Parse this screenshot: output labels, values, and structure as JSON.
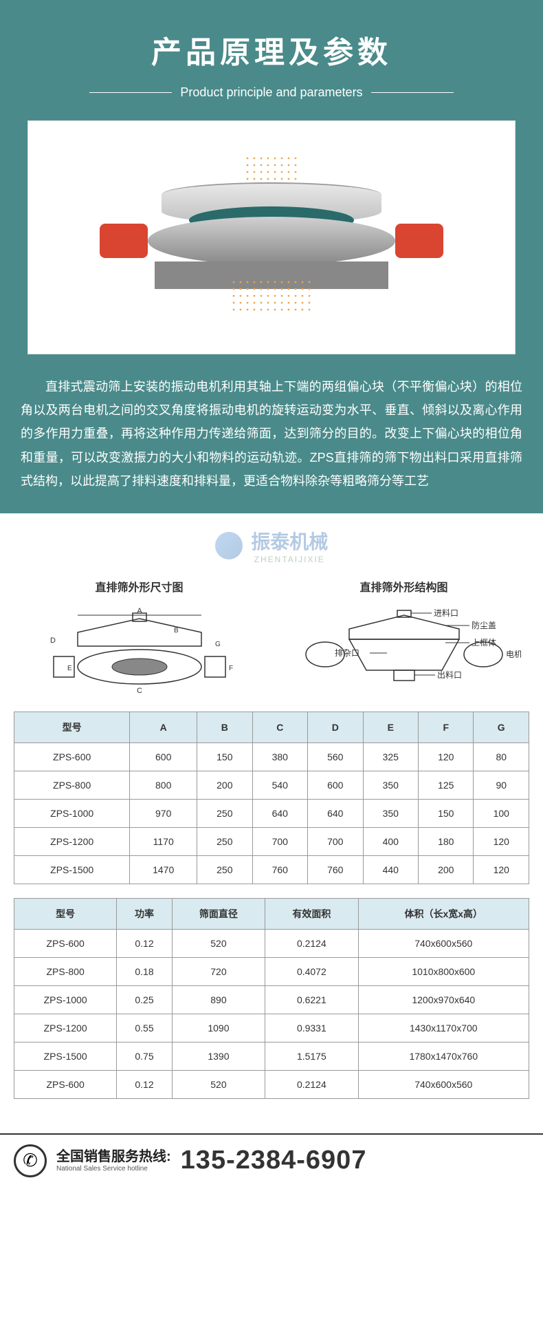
{
  "hero": {
    "title": "产品原理及参数",
    "subtitle": "Product principle and parameters",
    "description": "直排式震动筛上安装的振动电机利用其轴上下端的两组偏心块（不平衡偏心块）的相位角以及两台电机之间的交叉角度将振动电机的旋转运动变为水平、垂直、倾斜以及离心作用的多作用力重叠，再将这种作用力传递给筛面，达到筛分的目的。改变上下偏心块的相位角和重量，可以改变激振力的大小和物料的运动轨迹。ZPS直排筛的筛下物出料口采用直排筛式结构，以此提高了排料速度和排料量，更适合物料除杂等粗略筛分等工艺"
  },
  "watermark": {
    "cn": "振泰机械",
    "en": "ZHENTAIJIXIE"
  },
  "diagrams": {
    "left_title": "直排筛外形尺寸图",
    "right_title": "直排筛外形结构图",
    "labels": {
      "inlet": "进料口",
      "dust_cover": "防尘盖",
      "upper_frame": "上框体",
      "discharge": "排杂口",
      "outlet": "出料口",
      "motor": "电机"
    }
  },
  "table1": {
    "headers": [
      "型号",
      "A",
      "B",
      "C",
      "D",
      "E",
      "F",
      "G"
    ],
    "rows": [
      [
        "ZPS-600",
        "600",
        "150",
        "380",
        "560",
        "325",
        "120",
        "80"
      ],
      [
        "ZPS-800",
        "800",
        "200",
        "540",
        "600",
        "350",
        "125",
        "90"
      ],
      [
        "ZPS-1000",
        "970",
        "250",
        "640",
        "640",
        "350",
        "150",
        "100"
      ],
      [
        "ZPS-1200",
        "1170",
        "250",
        "700",
        "700",
        "400",
        "180",
        "120"
      ],
      [
        "ZPS-1500",
        "1470",
        "250",
        "760",
        "760",
        "440",
        "200",
        "120"
      ]
    ]
  },
  "table2": {
    "headers": [
      "型号",
      "功率",
      "筛面直径",
      "有效面积",
      "体积（长x宽x高）"
    ],
    "rows": [
      [
        "ZPS-600",
        "0.12",
        "520",
        "0.2124",
        "740x600x560"
      ],
      [
        "ZPS-800",
        "0.18",
        "720",
        "0.4072",
        "1010x800x600"
      ],
      [
        "ZPS-1000",
        "0.25",
        "890",
        "0.6221",
        "1200x970x640"
      ],
      [
        "ZPS-1200",
        "0.55",
        "1090",
        "0.9331",
        "1430x1170x700"
      ],
      [
        "ZPS-1500",
        "0.75",
        "1390",
        "1.5175",
        "1780x1470x760"
      ],
      [
        "ZPS-600",
        "0.12",
        "520",
        "0.2124",
        "740x600x560"
      ]
    ]
  },
  "footer": {
    "label_cn": "全国销售服务热线:",
    "label_en": "National Sales Service hotline",
    "phone": "135-2384-6907"
  },
  "colors": {
    "hero_bg": "#4a8a8a",
    "th_bg": "#d9eaf0",
    "border": "#999999",
    "motor": "#d94530",
    "mesh": "#2a6a6a",
    "particle": "#e8a84a"
  }
}
